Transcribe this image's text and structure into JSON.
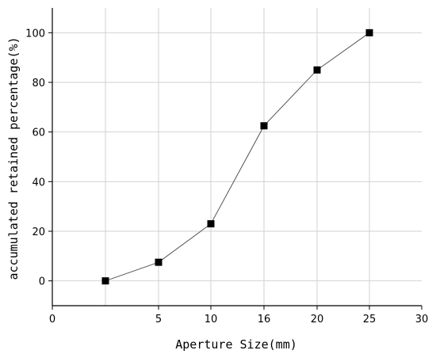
{
  "chart_data": {
    "type": "line",
    "xlabel": "Aperture Size(mm)",
    "ylabel": "accumulated retained percentage(%)",
    "x_tick_labels": [
      "0",
      "5",
      "10",
      "16",
      "20",
      "25",
      "30"
    ],
    "y_tick_labels": [
      "0",
      "20",
      "40",
      "60",
      "80",
      "100"
    ],
    "y_ticks": [
      0,
      20,
      40,
      60,
      80,
      100
    ],
    "ylim": [
      -10,
      110
    ],
    "grid": true,
    "series": [
      {
        "x": [
          "",
          "5",
          "10",
          "16",
          "20",
          "25"
        ],
        "y": [
          0,
          7.5,
          23,
          62.5,
          85,
          100
        ],
        "marker": "square",
        "marker_color": "#000000",
        "line_color": "#555555"
      }
    ]
  }
}
